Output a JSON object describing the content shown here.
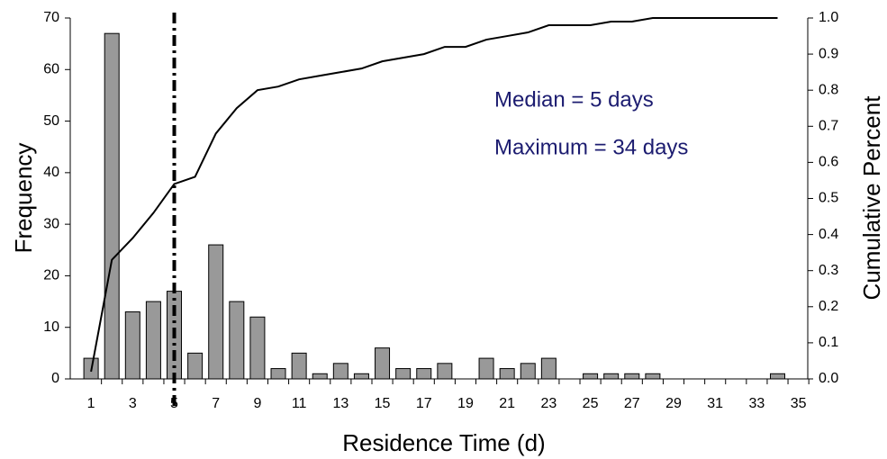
{
  "chart_data": {
    "type": "bar",
    "x_label": "Residence Time (d)",
    "y_label": "Frequency",
    "y2_label": "Cumulative Percent",
    "categories": [
      1,
      null,
      3,
      null,
      5,
      null,
      7,
      null,
      9,
      null,
      11,
      null,
      13,
      null,
      15,
      null,
      17,
      null,
      19,
      null,
      21,
      null,
      23,
      null,
      25,
      null,
      27,
      null,
      29,
      null,
      31,
      null,
      33,
      null,
      35
    ],
    "series": [
      {
        "type": "bar",
        "color": "#999999",
        "values": [
          4,
          67,
          13,
          15,
          17,
          5,
          26,
          15,
          12,
          2,
          5,
          1,
          3,
          1,
          6,
          2,
          2,
          3,
          0,
          4,
          2,
          3,
          4,
          0,
          1,
          1,
          1,
          1,
          0,
          0,
          0,
          0,
          0,
          1,
          null
        ]
      },
      {
        "type": "line",
        "axis": "y2",
        "color": "#000000",
        "values": [
          0.02,
          0.33,
          0.39,
          0.46,
          0.54,
          0.56,
          0.68,
          0.75,
          0.8,
          0.81,
          0.83,
          0.84,
          0.85,
          0.86,
          0.88,
          0.89,
          0.9,
          0.92,
          0.92,
          0.94,
          0.95,
          0.96,
          0.98,
          0.98,
          0.98,
          0.99,
          0.99,
          1.0,
          1.0,
          1.0,
          1.0,
          1.0,
          1.0,
          1.0,
          null
        ]
      }
    ],
    "ylim": [
      0,
      70
    ],
    "yticks": [
      0,
      10,
      20,
      30,
      40,
      50,
      60,
      70
    ],
    "y2lim": [
      0,
      1
    ],
    "y2ticks": [
      {
        "value": 0,
        "label": "0.0"
      },
      0.1,
      0.2,
      0.3,
      0.4,
      0.5,
      0.6,
      0.7,
      0.8,
      0.9,
      {
        "value": 1,
        "label": "1.0"
      }
    ],
    "median_line": 5,
    "annotations": [
      "Median = 5 days",
      "Maximum = 34 days"
    ]
  }
}
